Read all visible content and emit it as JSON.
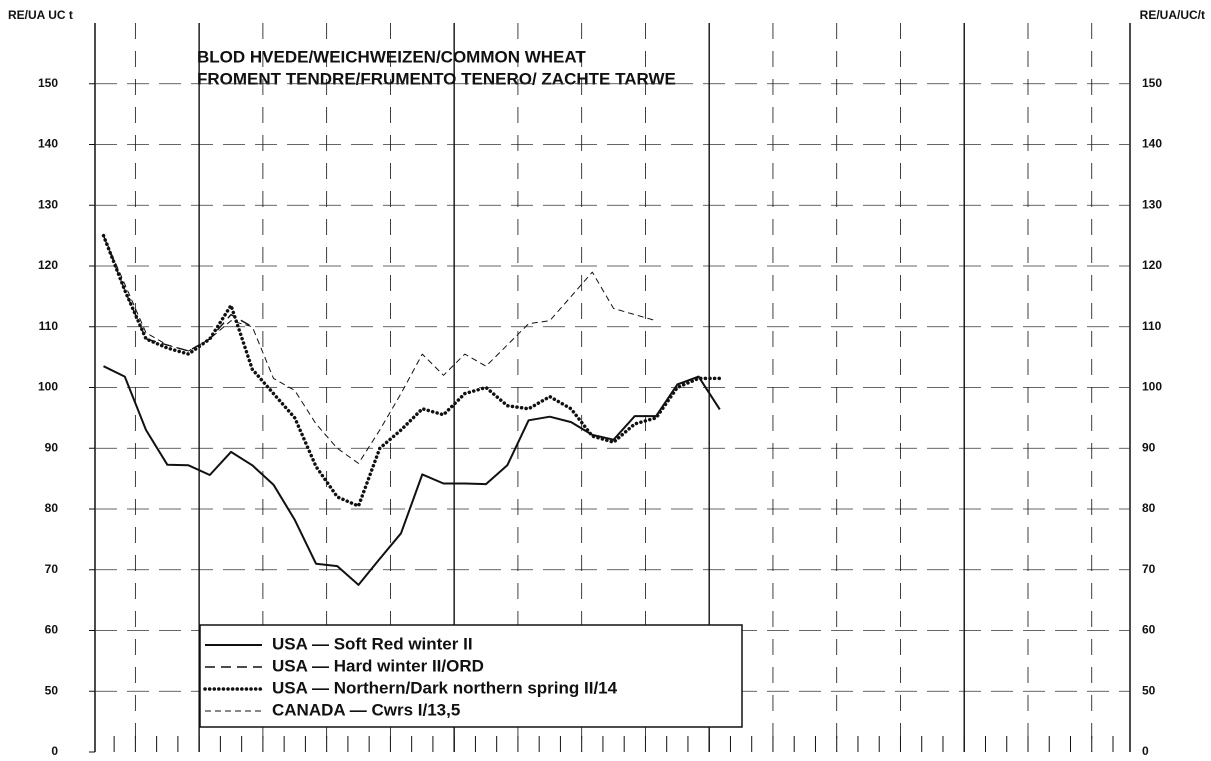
{
  "chart_data": {
    "type": "line",
    "title": [
      "BLOD HVEDE/WEICHWEIZEN/COMMON WHEAT",
      "FROMENT TENDRE/FRUMENTO TENERO/ ZACHTE TARWE"
    ],
    "y_label": "RE/UA UC t",
    "y2_label": "RE/UA/UC/t",
    "x": [
      0,
      1,
      2,
      3,
      4,
      5,
      6,
      7,
      8,
      9,
      10,
      11,
      12,
      13,
      14,
      15,
      16,
      17,
      18,
      19,
      20,
      21,
      22,
      23,
      24,
      25,
      26,
      27,
      28,
      29
    ],
    "series": [
      {
        "name": "USA — Soft Red winter II",
        "color": "#111111",
        "style": "solid",
        "values": [
          103.5,
          101.8,
          93,
          87.3,
          87.2,
          85.6,
          89.4,
          87.2,
          84,
          78.2,
          71,
          70.6,
          67.5,
          71.8,
          76,
          85.7,
          84.2,
          84.2,
          84.1,
          87.2,
          94.6,
          95.2,
          94.3,
          92.2,
          91.4,
          95.3,
          95.3,
          100.5,
          101.8,
          96.4
        ]
      },
      {
        "name": "USA — Hard winter II/ORD",
        "color": "#111111",
        "style": "dashed",
        "values": [
          125,
          116,
          108,
          107,
          106,
          108,
          112,
          110,
          null,
          null,
          null,
          null,
          null,
          null,
          null,
          null,
          null,
          null,
          null,
          null,
          null,
          null,
          null,
          null,
          null,
          null,
          null,
          null,
          null,
          null
        ]
      },
      {
        "name": "USA — Northern/Dark northern spring II/14",
        "color": "#111111",
        "style": "dotted",
        "values": [
          125,
          116,
          108,
          106.5,
          105.5,
          108,
          113.5,
          103,
          99,
          95,
          87,
          82,
          80.5,
          90,
          93,
          96.5,
          95.5,
          99,
          100,
          97,
          96.5,
          98.5,
          96.5,
          92,
          91,
          94,
          95,
          100,
          101.5,
          101.5
        ]
      },
      {
        "name": "CANADA — Cwrs I/13,5",
        "color": "#111111",
        "style": "thin-dashed",
        "values": [
          125,
          117,
          109,
          107,
          106,
          108,
          111,
          110,
          101.5,
          99.5,
          94,
          90,
          87.5,
          93,
          99,
          105.5,
          102,
          105.5,
          103.5,
          107,
          110.5,
          111,
          115,
          119,
          113,
          112,
          111,
          null,
          null,
          null
        ]
      }
    ],
    "xlim": [
      -0.4,
      48.3
    ],
    "xticks": [
      0.5,
      1.5,
      2.5,
      3.5,
      4.5,
      5.5,
      6.5,
      7.5,
      8.5,
      9.5,
      10.5,
      11.5,
      12.5,
      13.5,
      14.5,
      15.5,
      16.5,
      17.5,
      18.5,
      19.5,
      20.5,
      21.5,
      22.5,
      23.5,
      24.5,
      25.5,
      26.5,
      27.5,
      28.5,
      29.5,
      30.5,
      31.5,
      32.5,
      33.5,
      34.5,
      35.5,
      36.5,
      37.5,
      38.5,
      39.5,
      40.5,
      41.5,
      42.5,
      43.5,
      44.5,
      45.5,
      46.5,
      47.5
    ],
    "ylim": [
      40,
      160
    ],
    "yticks": [
      {
        "value": 40,
        "label": "0"
      },
      50,
      60,
      70,
      80,
      90,
      100,
      110,
      120,
      130,
      140,
      150
    ],
    "grid": true
  }
}
